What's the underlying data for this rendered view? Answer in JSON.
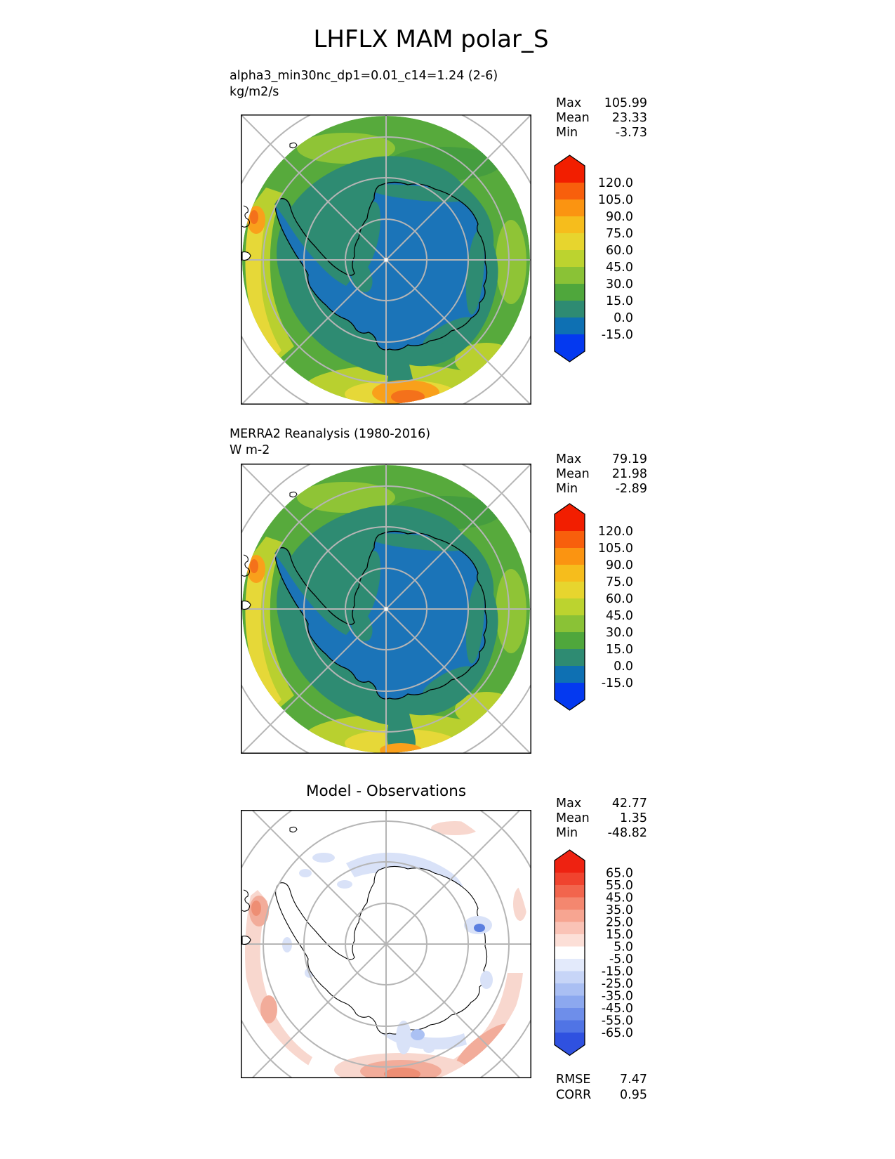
{
  "page_title": "LHFLX MAM polar_S",
  "palette": {
    "frame": "#000000",
    "graticule": "#b5b5b5",
    "coast": "#000000",
    "ocean-green": "#57AA3C",
    "green-dark": "#459D3F",
    "green-light": "#8FC436",
    "yellow-green": "#B9D02F",
    "yellow": "#E6D838",
    "orange": "#F9A01B",
    "orange-deep": "#F4711B",
    "teal": "#2E8B72",
    "land-blue": "#1B74B8",
    "diff-red-light": "#F8D7CE",
    "diff-red-mid": "#F2AC9A",
    "diff-red-strong": "#EE8E74",
    "diff-blue-light": "#D9E2F8",
    "diff-blue-mid": "#ABC1F3",
    "diff-blue-strong": "#5B7FE0",
    "pole": "#FFFFFF"
  },
  "panels": {
    "model": {
      "subtitle1": "alpha3_min30nc_dp1=0.01_c14=1.24 (2-6)",
      "subtitle2": "kg/m2/s",
      "stats": [
        {
          "label": "Max",
          "value": "105.99"
        },
        {
          "label": "Mean",
          "value": "23.33"
        },
        {
          "label": "Min",
          "value": "-3.73"
        }
      ],
      "colorbar": {
        "labels": [
          "120.0",
          "105.0",
          "90.0",
          "75.0",
          "60.0",
          "45.0",
          "30.0",
          "15.0",
          "0.0",
          "-15.0"
        ],
        "band_colors": [
          "#F21E00",
          "#F85F0C",
          "#FB9411",
          "#F6BD1C",
          "#E7D52E",
          "#BCD32F",
          "#8AC236",
          "#4FA73C",
          "#2E8B72",
          "#0E70B3",
          "#0439F0"
        ],
        "seg_height": 24
      }
    },
    "obs": {
      "subtitle1": "MERRA2 Reanalysis (1980-2016)",
      "subtitle2": "W m-2",
      "stats": [
        {
          "label": "Max",
          "value": "79.19"
        },
        {
          "label": "Mean",
          "value": "21.98"
        },
        {
          "label": "Min",
          "value": "-2.89"
        }
      ],
      "colorbar": {
        "labels": [
          "120.0",
          "105.0",
          "90.0",
          "75.0",
          "60.0",
          "45.0",
          "30.0",
          "15.0",
          "0.0",
          "-15.0"
        ],
        "band_colors": [
          "#F21E00",
          "#F85F0C",
          "#FB9411",
          "#F6BD1C",
          "#E7D52E",
          "#BCD32F",
          "#8AC236",
          "#4FA73C",
          "#2E8B72",
          "#0E70B3",
          "#0439F0"
        ],
        "seg_height": 24
      }
    },
    "diff": {
      "title": "Model - Observations",
      "stats": [
        {
          "label": "Max",
          "value": "42.77"
        },
        {
          "label": "Mean",
          "value": "1.35"
        },
        {
          "label": "Min",
          "value": "-48.82"
        }
      ],
      "colorbar": {
        "labels": [
          "65.0",
          "55.0",
          "45.0",
          "35.0",
          "25.0",
          "15.0",
          "5.0",
          "-5.0",
          "-15.0",
          "-25.0",
          "-35.0",
          "-45.0",
          "-55.0",
          "-65.0"
        ],
        "band_colors": [
          "#EE2211",
          "#F0432E",
          "#F2654D",
          "#F4876F",
          "#F7A591",
          "#FAC3B6",
          "#FCDFD7",
          "#FFFFFF",
          "#E3EAFB",
          "#C7D5F7",
          "#AABFF3",
          "#8CA8EF",
          "#6E8EEA",
          "#5074E5",
          "#2F51E0"
        ],
        "seg_height": 17.5
      },
      "metrics": [
        {
          "label": "RMSE",
          "value": "7.47"
        },
        {
          "label": "CORR",
          "value": "0.95"
        }
      ]
    }
  },
  "chart_data": {
    "type": "heatmap",
    "subtype": "south_polar_stereographic_contour_maps",
    "title": "LHFLX MAM polar_S",
    "variable": "LHFLX",
    "season": "MAM",
    "region": "polar_S",
    "maps": [
      {
        "name": "alpha3_min30nc_dp1=0.01_c14=1.24 (2-6)",
        "units": "kg/m2/s",
        "max": 105.99,
        "mean": 23.33,
        "min": -3.73,
        "contour_levels": [
          -15.0,
          0.0,
          15.0,
          30.0,
          45.0,
          60.0,
          75.0,
          90.0,
          105.0,
          120.0
        ]
      },
      {
        "name": "MERRA2 Reanalysis (1980-2016)",
        "units": "W m-2",
        "max": 79.19,
        "mean": 21.98,
        "min": -2.89,
        "contour_levels": [
          -15.0,
          0.0,
          15.0,
          30.0,
          45.0,
          60.0,
          75.0,
          90.0,
          105.0,
          120.0
        ]
      },
      {
        "name": "Model - Observations",
        "max": 42.77,
        "mean": 1.35,
        "min": -48.82,
        "rmse": 7.47,
        "corr": 0.95,
        "contour_levels": [
          -65.0,
          -55.0,
          -45.0,
          -35.0,
          -25.0,
          -15.0,
          -5.0,
          5.0,
          15.0,
          25.0,
          35.0,
          45.0,
          55.0,
          65.0
        ]
      }
    ]
  }
}
